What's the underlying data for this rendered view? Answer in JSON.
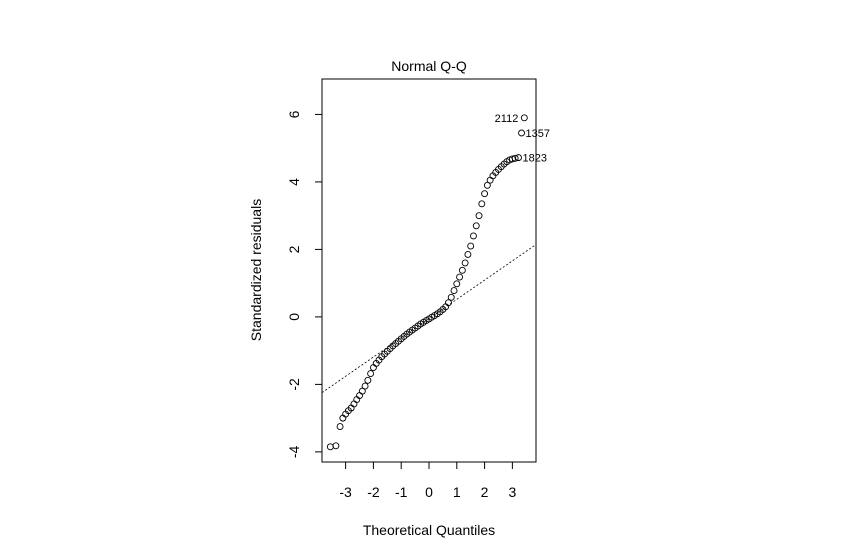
{
  "chart_data": {
    "type": "scatter",
    "title": "Normal Q-Q",
    "xlabel": "Theoretical Quantiles",
    "ylabel": "Standardized residuals",
    "xlim": [
      -3.85,
      3.85
    ],
    "ylim": [
      -4.3,
      7.05
    ],
    "x_ticks": [
      -3,
      -2,
      -1,
      0,
      1,
      2,
      3
    ],
    "x_tick_labels": [
      "-3",
      "-2",
      "-1",
      "0",
      "1",
      "2",
      "3"
    ],
    "y_ticks": [
      -4,
      -2,
      0,
      2,
      4,
      6
    ],
    "y_tick_labels": [
      "-4",
      "-2",
      "0",
      "2",
      "4",
      "6"
    ],
    "grid": false,
    "reference_line": {
      "style": "dotted",
      "intercept": -0.05,
      "slope": 0.57
    },
    "series": [
      {
        "x": [
          -3.55,
          -3.35,
          -3.2,
          -3.1,
          -3.0,
          -2.9,
          -2.8,
          -2.7,
          -2.6,
          -2.5,
          -2.4,
          -2.3,
          -2.2,
          -2.1,
          -2.0,
          -1.9,
          -1.8,
          -1.7,
          -1.6,
          -1.5,
          -1.4,
          -1.3,
          -1.2,
          -1.1,
          -1.0,
          -0.9,
          -0.8,
          -0.7,
          -0.6,
          -0.5,
          -0.4,
          -0.3,
          -0.2,
          -0.1,
          0.0,
          0.1,
          0.2,
          0.3,
          0.4,
          0.5,
          0.6,
          0.7,
          0.8,
          0.9,
          1.0,
          1.1,
          1.2,
          1.3,
          1.4,
          1.5,
          1.6,
          1.7,
          1.8,
          1.9,
          2.0,
          2.1,
          2.2,
          2.3,
          2.4,
          2.5,
          2.6,
          2.7,
          2.8,
          2.9,
          3.0,
          3.1
        ],
        "y": [
          -3.85,
          -3.82,
          -3.25,
          -3.0,
          -2.88,
          -2.78,
          -2.7,
          -2.58,
          -2.45,
          -2.33,
          -2.2,
          -2.05,
          -1.88,
          -1.68,
          -1.5,
          -1.38,
          -1.28,
          -1.18,
          -1.1,
          -1.02,
          -0.94,
          -0.86,
          -0.79,
          -0.72,
          -0.65,
          -0.58,
          -0.51,
          -0.45,
          -0.39,
          -0.33,
          -0.27,
          -0.21,
          -0.16,
          -0.11,
          -0.06,
          -0.01,
          0.04,
          0.09,
          0.15,
          0.22,
          0.3,
          0.42,
          0.58,
          0.78,
          0.98,
          1.18,
          1.38,
          1.6,
          1.85,
          2.1,
          2.4,
          2.7,
          3.0,
          3.35,
          3.65,
          3.9,
          4.05,
          4.18,
          4.28,
          4.37,
          4.45,
          4.53,
          4.6,
          4.65,
          4.68,
          4.7
        ]
      },
      {
        "x": [
          3.22,
          3.33,
          3.43
        ],
        "y": [
          4.72,
          5.45,
          5.9
        ],
        "labels": [
          "1823",
          "1357",
          "2112"
        ]
      }
    ]
  }
}
